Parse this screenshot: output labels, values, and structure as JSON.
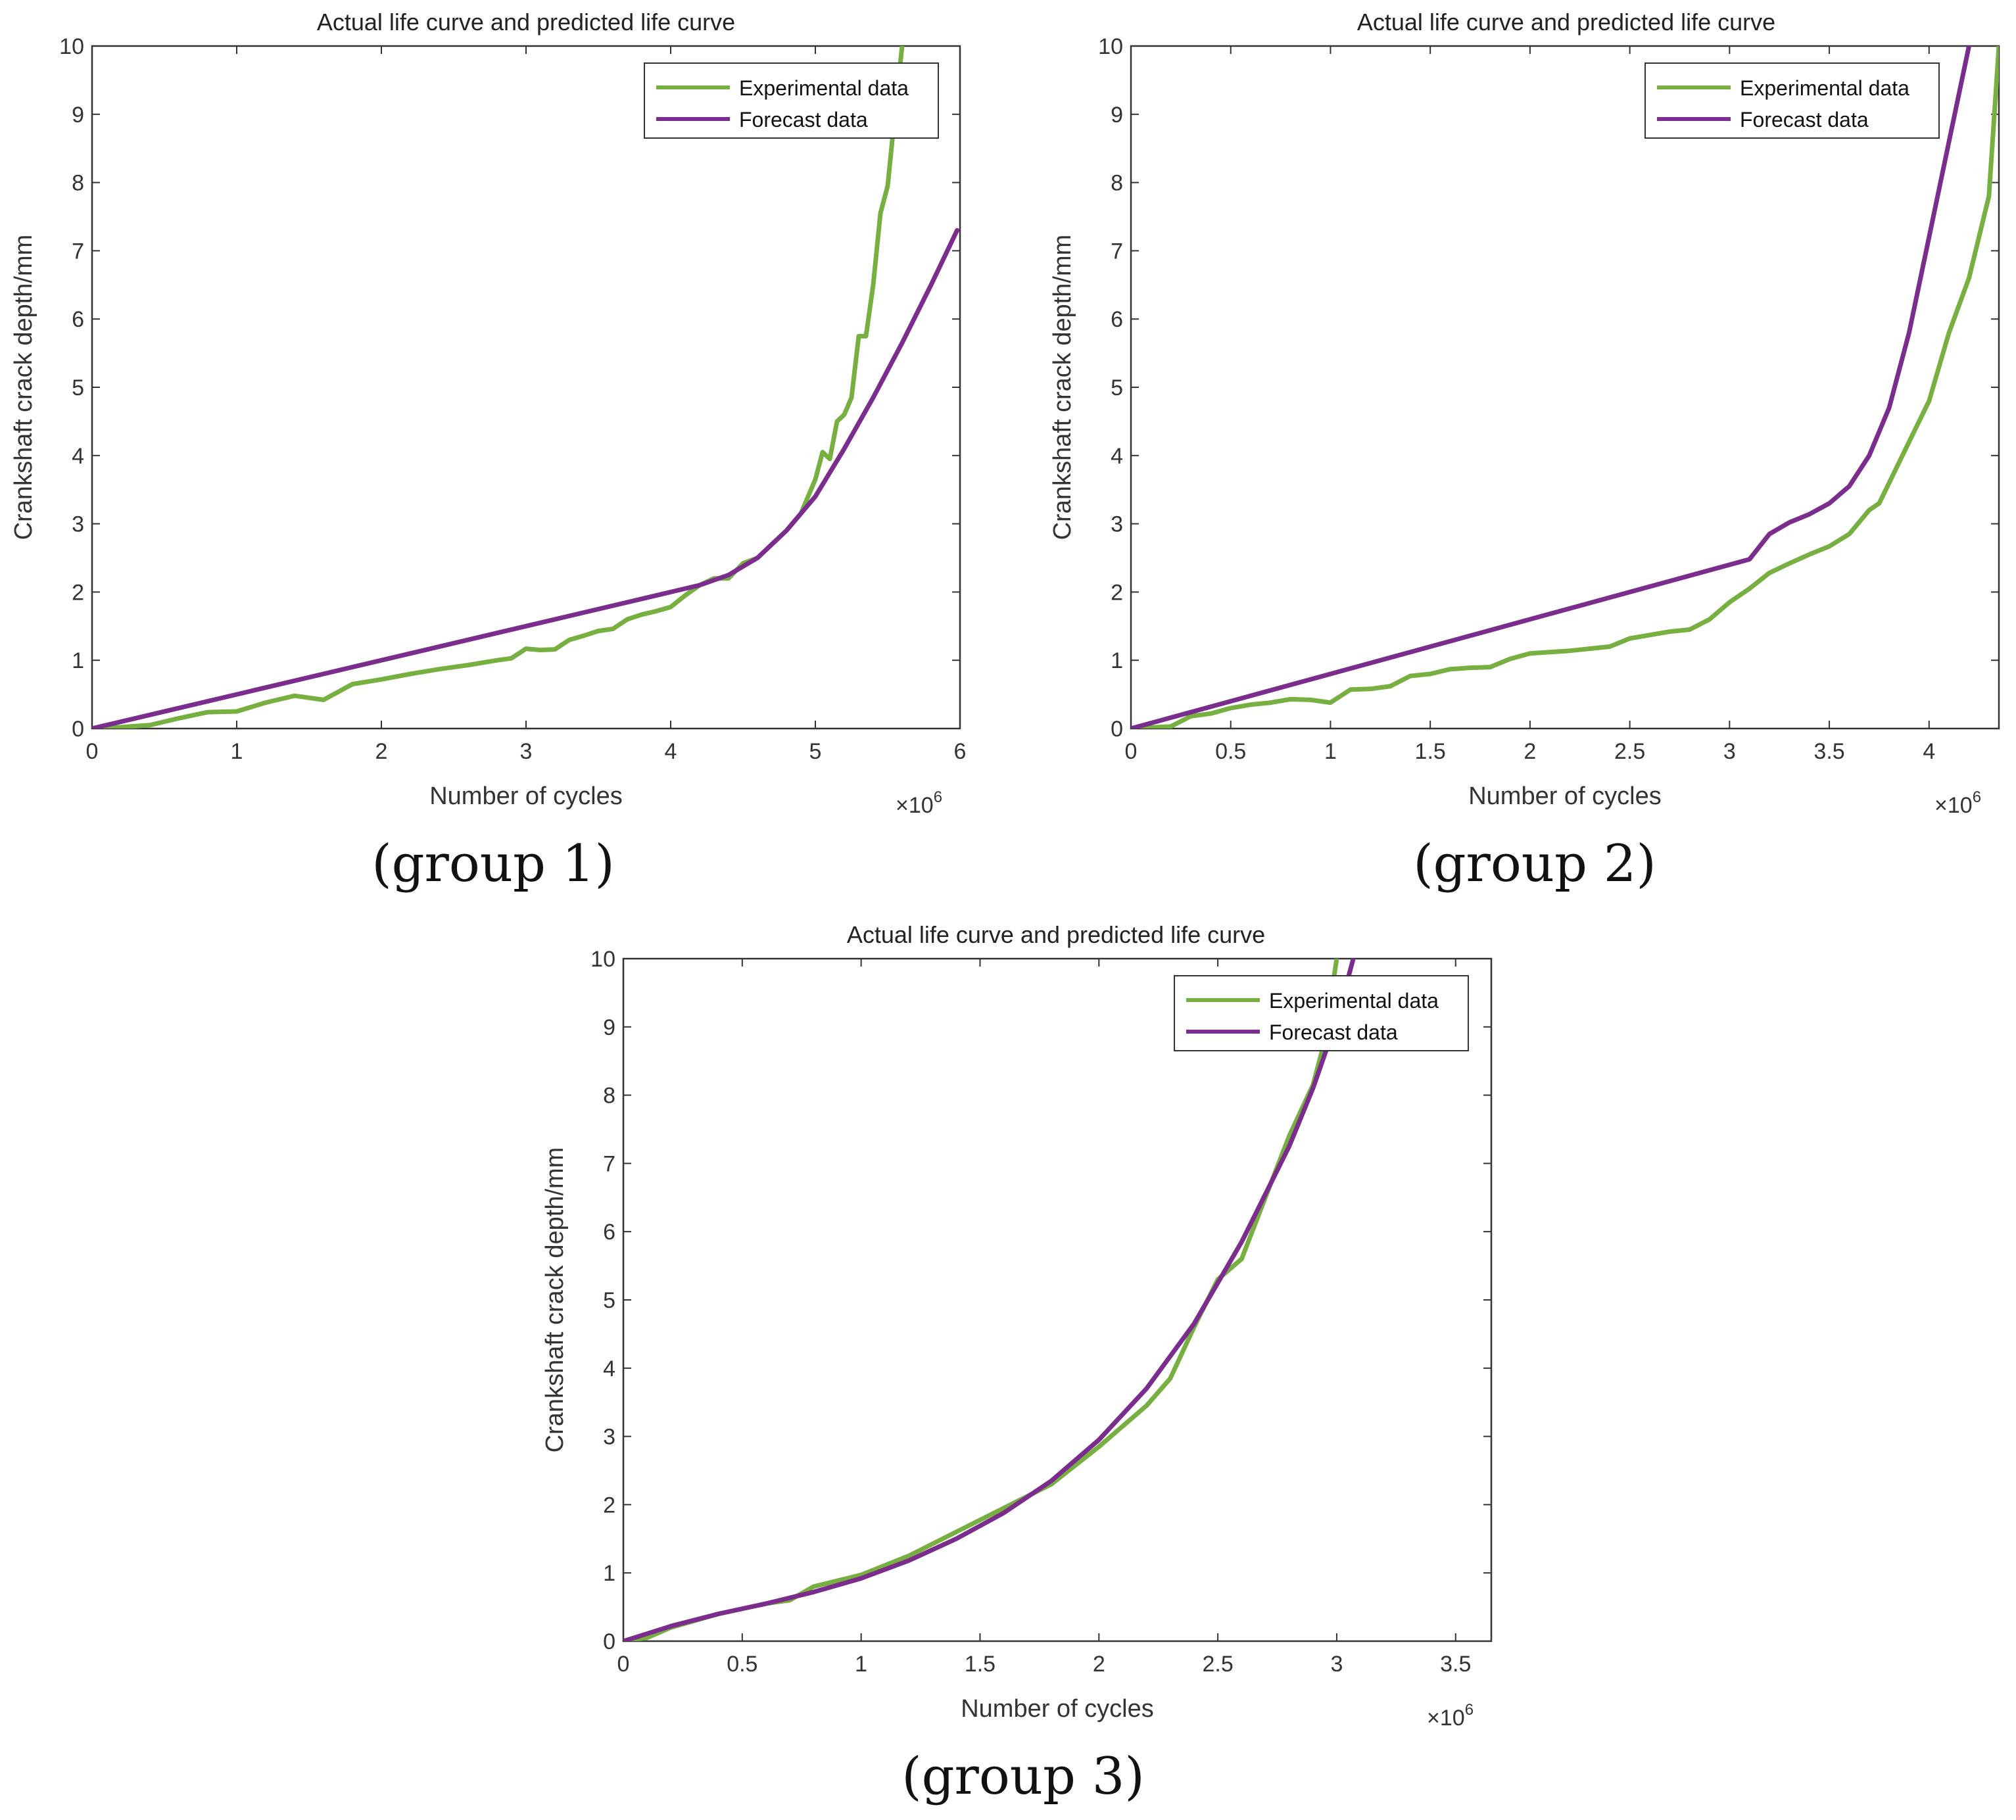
{
  "figure": {
    "panel_captions": [
      "(group 1)",
      "(group 2)",
      "(group 3)"
    ]
  },
  "chart_data": [
    {
      "type": "line",
      "title": "Actual life curve and predicted life curve",
      "xlabel": "Number of cycles",
      "ylabel": "Crankshaft crack depth/mm",
      "x_multiplier_label": "×10",
      "x_multiplier_exponent": "6",
      "xlim": [
        0,
        6
      ],
      "ylim": [
        0,
        10
      ],
      "xticks": [
        0,
        1,
        2,
        3,
        4,
        5,
        6
      ],
      "xtick_labels": [
        "0",
        "1",
        "2",
        "3",
        "4",
        "5",
        "6"
      ],
      "yticks": [
        0,
        1,
        2,
        3,
        4,
        5,
        6,
        7,
        8,
        9,
        10
      ],
      "ytick_labels": [
        "0",
        "1",
        "2",
        "3",
        "4",
        "5",
        "6",
        "7",
        "8",
        "9",
        "10"
      ],
      "legend": {
        "position": "top-right",
        "entries": [
          "Experimental data",
          "Forecast data"
        ]
      },
      "series": [
        {
          "name": "Experimental data",
          "color": "#77b041",
          "x": [
            0,
            0.2,
            0.4,
            0.6,
            0.8,
            1.0,
            1.2,
            1.4,
            1.6,
            1.8,
            2.0,
            2.2,
            2.4,
            2.6,
            2.8,
            2.9,
            3.0,
            3.1,
            3.2,
            3.3,
            3.4,
            3.5,
            3.6,
            3.7,
            3.8,
            3.9,
            4.0,
            4.1,
            4.2,
            4.3,
            4.4,
            4.5,
            4.6,
            4.7,
            4.8,
            4.9,
            5.0,
            5.05,
            5.1,
            5.15,
            5.2,
            5.25,
            5.3,
            5.35,
            5.4,
            5.45,
            5.5,
            5.55,
            5.6
          ],
          "y": [
            0,
            0.02,
            0.05,
            0.15,
            0.24,
            0.25,
            0.38,
            0.48,
            0.42,
            0.65,
            0.72,
            0.8,
            0.87,
            0.93,
            1.0,
            1.03,
            1.17,
            1.15,
            1.16,
            1.3,
            1.36,
            1.43,
            1.46,
            1.6,
            1.67,
            1.72,
            1.78,
            1.95,
            2.1,
            2.2,
            2.2,
            2.42,
            2.5,
            2.7,
            2.9,
            3.15,
            3.65,
            4.05,
            3.95,
            4.5,
            4.6,
            4.85,
            5.75,
            5.75,
            6.5,
            7.55,
            7.95,
            9.0,
            10.0
          ]
        },
        {
          "name": "Forecast data",
          "color": "#7b2d8e",
          "x": [
            0,
            1,
            2,
            3,
            4,
            4.2,
            4.4,
            4.6,
            4.8,
            5.0,
            5.2,
            5.4,
            5.6,
            5.8,
            5.98
          ],
          "y": [
            0,
            0.5,
            1.0,
            1.5,
            2.0,
            2.1,
            2.25,
            2.5,
            2.9,
            3.4,
            4.1,
            4.85,
            5.65,
            6.5,
            7.3
          ]
        }
      ]
    },
    {
      "type": "line",
      "title": "Actual life curve and predicted life curve",
      "xlabel": "Number of cycles",
      "ylabel": "Crankshaft crack depth/mm",
      "x_multiplier_label": "×10",
      "x_multiplier_exponent": "6",
      "xlim": [
        0,
        4.35
      ],
      "ylim": [
        0,
        10
      ],
      "xticks": [
        0,
        0.5,
        1,
        1.5,
        2,
        2.5,
        3,
        3.5,
        4
      ],
      "xtick_labels": [
        "0",
        "0.5",
        "1",
        "1.5",
        "2",
        "2.5",
        "3",
        "3.5",
        "4"
      ],
      "yticks": [
        0,
        1,
        2,
        3,
        4,
        5,
        6,
        7,
        8,
        9,
        10
      ],
      "ytick_labels": [
        "0",
        "1",
        "2",
        "3",
        "4",
        "5",
        "6",
        "7",
        "8",
        "9",
        "10"
      ],
      "legend": {
        "position": "top-right",
        "entries": [
          "Experimental data",
          "Forecast data"
        ]
      },
      "series": [
        {
          "name": "Experimental data",
          "color": "#77b041",
          "x": [
            0,
            0.2,
            0.3,
            0.4,
            0.5,
            0.6,
            0.7,
            0.8,
            0.9,
            1.0,
            1.1,
            1.2,
            1.3,
            1.4,
            1.5,
            1.6,
            1.7,
            1.8,
            1.9,
            2.0,
            2.2,
            2.4,
            2.5,
            2.6,
            2.7,
            2.8,
            2.9,
            3.0,
            3.1,
            3.2,
            3.3,
            3.4,
            3.5,
            3.6,
            3.7,
            3.75,
            3.8,
            3.9,
            4.0,
            4.1,
            4.2,
            4.3,
            4.35
          ],
          "y": [
            0,
            0.03,
            0.18,
            0.22,
            0.3,
            0.35,
            0.38,
            0.43,
            0.42,
            0.38,
            0.57,
            0.58,
            0.62,
            0.77,
            0.8,
            0.87,
            0.89,
            0.9,
            1.02,
            1.1,
            1.14,
            1.2,
            1.32,
            1.37,
            1.42,
            1.45,
            1.6,
            1.85,
            2.05,
            2.28,
            2.42,
            2.55,
            2.67,
            2.85,
            3.2,
            3.3,
            3.6,
            4.2,
            4.8,
            5.8,
            6.6,
            7.8,
            10.0
          ]
        },
        {
          "name": "Forecast data",
          "color": "#7b2d8e",
          "x": [
            0,
            1.0,
            2.0,
            3.1,
            3.2,
            3.3,
            3.4,
            3.5,
            3.6,
            3.7,
            3.8,
            3.9,
            4.0,
            4.1,
            4.2
          ],
          "y": [
            0,
            0.8,
            1.6,
            2.48,
            2.85,
            3.02,
            3.14,
            3.3,
            3.55,
            4.0,
            4.7,
            5.8,
            7.2,
            8.6,
            10.0
          ]
        }
      ]
    },
    {
      "type": "line",
      "title": "Actual life curve and predicted life curve",
      "xlabel": "Number of cycles",
      "ylabel": "Crankshaft crack depth/mm",
      "x_multiplier_label": "×10",
      "x_multiplier_exponent": "6",
      "xlim": [
        0,
        3.65
      ],
      "ylim": [
        0,
        10
      ],
      "xticks": [
        0,
        0.5,
        1,
        1.5,
        2,
        2.5,
        3,
        3.5
      ],
      "xtick_labels": [
        "0",
        "0.5",
        "1",
        "1.5",
        "2",
        "2.5",
        "3",
        "3.5"
      ],
      "yticks": [
        0,
        1,
        2,
        3,
        4,
        5,
        6,
        7,
        8,
        9,
        10
      ],
      "ytick_labels": [
        "0",
        "1",
        "2",
        "3",
        "4",
        "5",
        "6",
        "7",
        "8",
        "9",
        "10"
      ],
      "legend": {
        "position": "top-right",
        "entries": [
          "Experimental data",
          "Forecast data"
        ]
      },
      "series": [
        {
          "name": "Experimental data",
          "color": "#77b041",
          "x": [
            0,
            0.1,
            0.2,
            0.4,
            0.6,
            0.7,
            0.8,
            1.0,
            1.2,
            1.4,
            1.6,
            1.8,
            2.0,
            2.2,
            2.3,
            2.4,
            2.5,
            2.6,
            2.7,
            2.8,
            2.9,
            2.95,
            3.0
          ],
          "y": [
            0,
            0.05,
            0.2,
            0.4,
            0.55,
            0.6,
            0.8,
            0.97,
            1.25,
            1.6,
            1.95,
            2.3,
            2.85,
            3.45,
            3.85,
            4.6,
            5.3,
            5.6,
            6.5,
            7.4,
            8.15,
            8.8,
            10.0
          ]
        },
        {
          "name": "Forecast data",
          "color": "#7b2d8e",
          "x": [
            0,
            0.2,
            0.4,
            0.6,
            0.8,
            1.0,
            1.2,
            1.4,
            1.6,
            1.8,
            2.0,
            2.2,
            2.4,
            2.6,
            2.8,
            2.9,
            3.0,
            3.07
          ],
          "y": [
            0,
            0.22,
            0.4,
            0.55,
            0.72,
            0.92,
            1.18,
            1.5,
            1.88,
            2.35,
            2.95,
            3.7,
            4.65,
            5.85,
            7.25,
            8.1,
            9.1,
            10.0
          ]
        }
      ]
    }
  ]
}
